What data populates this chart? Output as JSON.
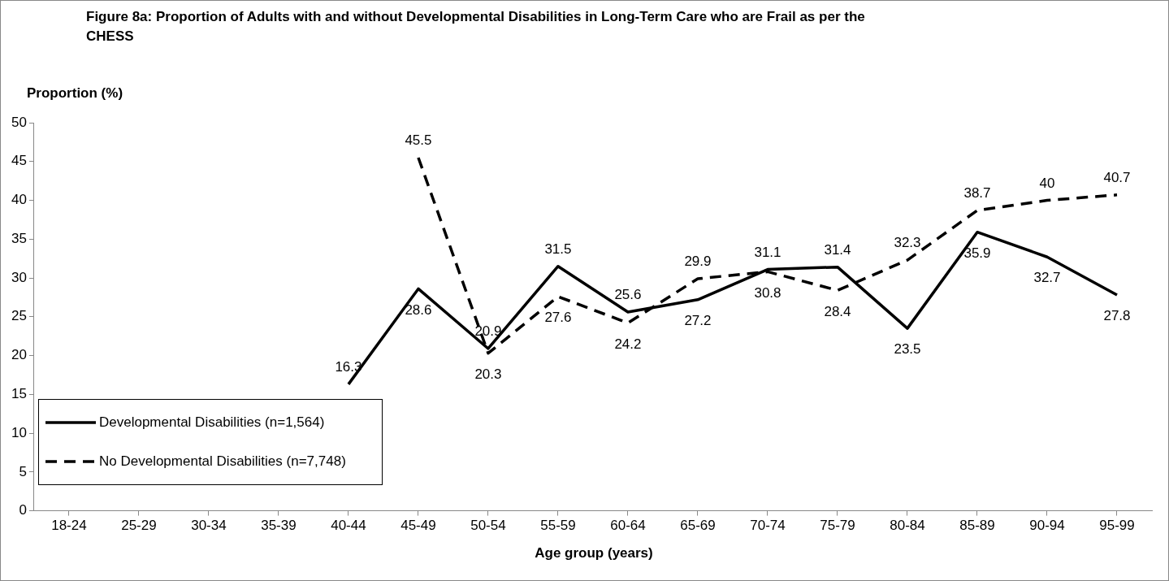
{
  "chart_data": {
    "type": "line",
    "title": "Figure 8a: Proportion of Adults with and without Developmental Disabilities in Long-Term Care who are Frail as per the CHESS",
    "ylabel": "Proportion (%)",
    "xlabel": "Age group (years)",
    "categories": [
      "18-24",
      "25-29",
      "30-34",
      "35-39",
      "40-44",
      "45-49",
      "50-54",
      "55-59",
      "60-64",
      "65-69",
      "70-74",
      "75-79",
      "80-84",
      "85-89",
      "90-94",
      "95-99"
    ],
    "series": [
      {
        "name": "Developmental Disabilities (n=1,564)",
        "color": "#000000",
        "line_style": "solid",
        "values": [
          null,
          null,
          null,
          null,
          16.3,
          28.6,
          20.9,
          31.5,
          25.6,
          27.2,
          31.1,
          31.4,
          23.5,
          35.9,
          32.7,
          27.8
        ]
      },
      {
        "name": "No Developmental Disabilities (n=7,748)",
        "color": "#000000",
        "line_style": "dashed",
        "values": [
          null,
          null,
          null,
          null,
          null,
          45.5,
          20.3,
          27.6,
          24.2,
          29.9,
          30.8,
          28.4,
          32.3,
          38.7,
          40,
          40.7
        ]
      }
    ],
    "ylim": [
      0,
      50
    ],
    "yticks": [
      0,
      5,
      10,
      15,
      20,
      25,
      30,
      35,
      40,
      45,
      50
    ],
    "grid": false,
    "legend": "bottom left",
    "marker": "none",
    "data_labels": true
  }
}
